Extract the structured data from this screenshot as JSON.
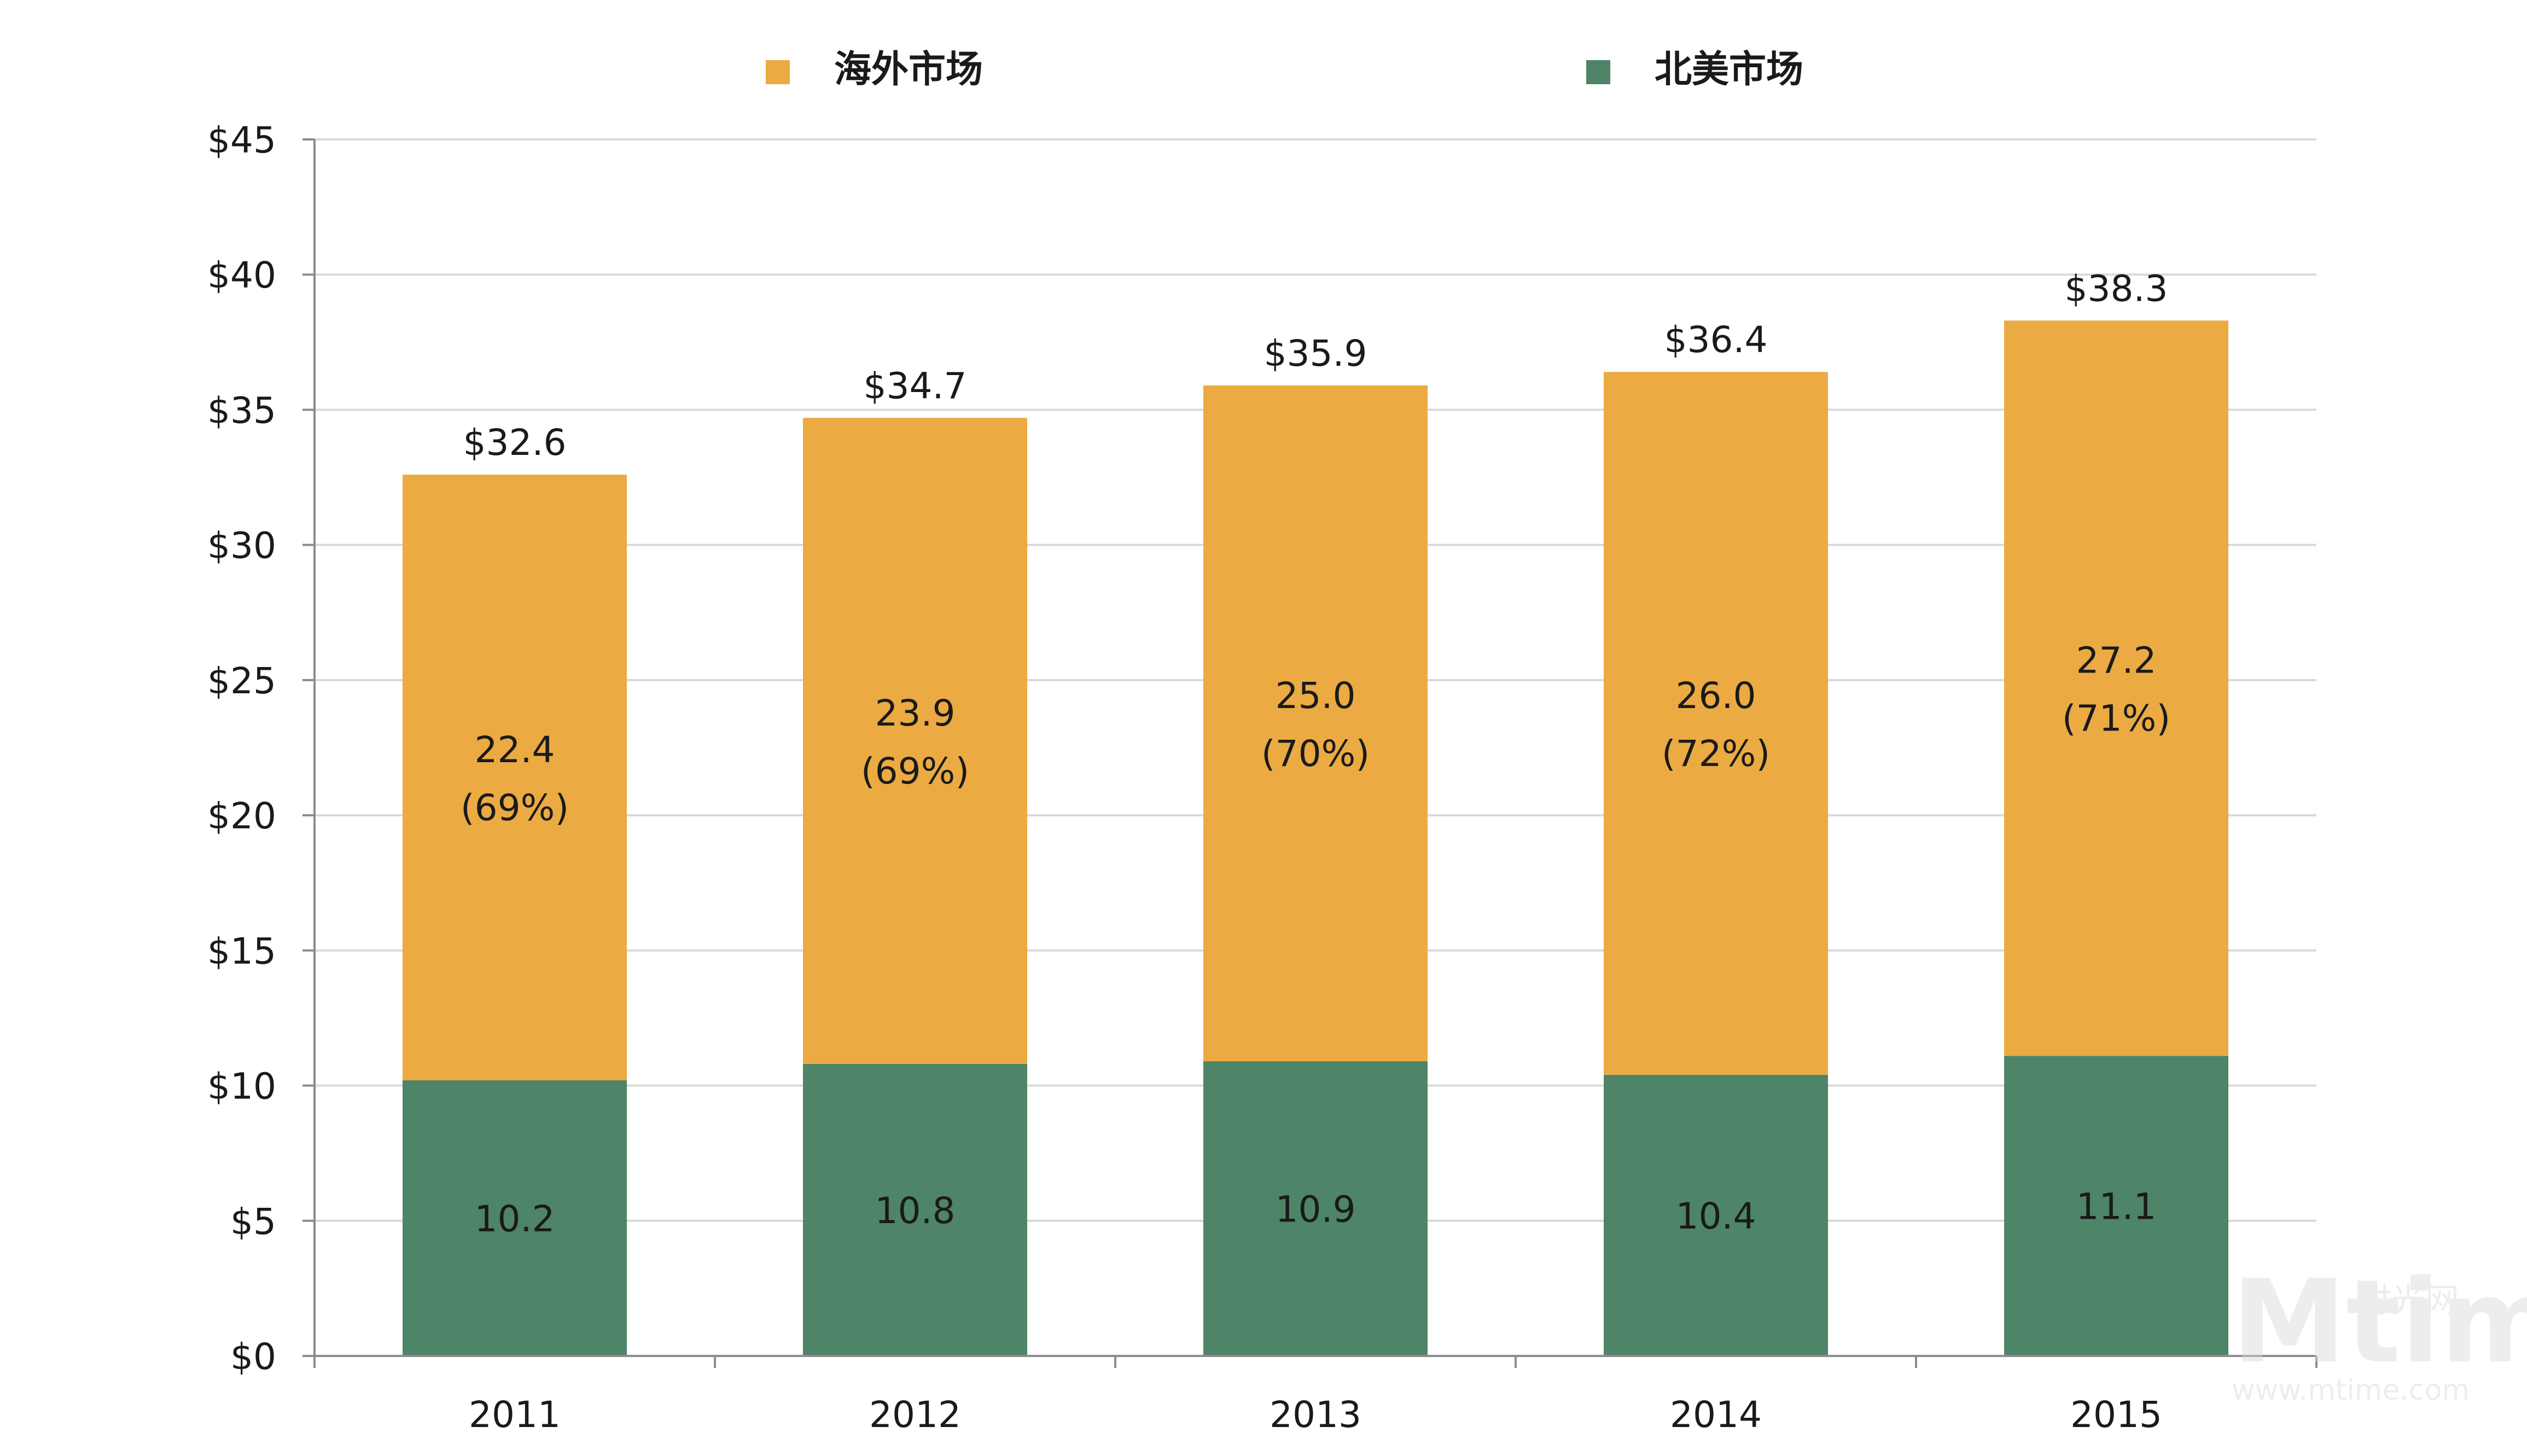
{
  "chart_data": {
    "type": "bar",
    "stacked": true,
    "title": "",
    "xlabel": "",
    "ylabel": "",
    "categories": [
      "2011",
      "2012",
      "2013",
      "2014",
      "2015"
    ],
    "ylim": [
      0,
      45
    ],
    "y_ticks": [
      0,
      5,
      10,
      15,
      20,
      25,
      30,
      35,
      40,
      45
    ],
    "y_tick_labels": [
      "$0",
      "$5",
      "$10",
      "$15",
      "$20",
      "$25",
      "$30",
      "$35",
      "$40",
      "$45"
    ],
    "grid": true,
    "legend_position": "top-center",
    "series": [
      {
        "name": "北美市场",
        "color": "#4e8467",
        "values": [
          10.2,
          10.8,
          10.9,
          10.4,
          11.1
        ],
        "labels": [
          "10.2",
          "10.8",
          "10.9",
          "10.4",
          "11.1"
        ]
      },
      {
        "name": "海外市场",
        "color": "#ebab42",
        "values": [
          22.4,
          23.9,
          25.0,
          26.0,
          27.2
        ],
        "labels": [
          "22.4",
          "23.9",
          "25.0",
          "26.0",
          "27.2"
        ],
        "share_labels": [
          "(69%)",
          "(69%)",
          "(70%)",
          "(72%)",
          "(71%)"
        ]
      }
    ],
    "legend_order": [
      1,
      0
    ],
    "totals": [
      32.6,
      34.7,
      35.9,
      36.4,
      38.3
    ],
    "total_labels": [
      "$32.6",
      "$34.7",
      "$35.9",
      "$36.4",
      "$38.3"
    ]
  },
  "watermark": {
    "brand": "Mtime",
    "cn_text": "时光网",
    "url": "www.mtime.com"
  }
}
